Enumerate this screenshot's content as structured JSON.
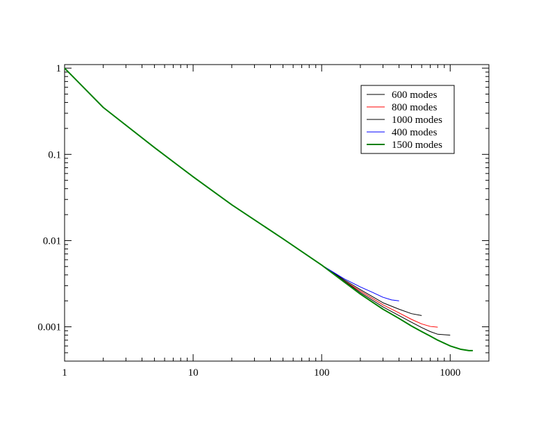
{
  "chart_data": {
    "type": "line",
    "title": "",
    "xlabel": "",
    "ylabel": "",
    "x_scale": "log",
    "y_scale": "log",
    "xlim": [
      1,
      2000
    ],
    "ylim": [
      0.0004,
      1.1
    ],
    "grid": false,
    "legend_position": "top-right",
    "x_ticks": [
      {
        "value": 1,
        "label": "1"
      },
      {
        "value": 10,
        "label": "10"
      },
      {
        "value": 100,
        "label": "100"
      },
      {
        "value": 1000,
        "label": "1000"
      }
    ],
    "y_ticks": [
      {
        "value": 1,
        "label": "1"
      },
      {
        "value": 0.1,
        "label": "0.1"
      },
      {
        "value": 0.01,
        "label": "0.01"
      },
      {
        "value": 0.001,
        "label": "0.001"
      }
    ],
    "series": [
      {
        "name": "600 modes",
        "color": "#000000",
        "line_width": 1,
        "points": [
          [
            1,
            1
          ],
          [
            2,
            0.35
          ],
          [
            5,
            0.12
          ],
          [
            10,
            0.055
          ],
          [
            20,
            0.026
          ],
          [
            50,
            0.0105
          ],
          [
            100,
            0.0052
          ],
          [
            150,
            0.0035
          ],
          [
            200,
            0.0027
          ],
          [
            300,
            0.0019
          ],
          [
            400,
            0.0016
          ],
          [
            500,
            0.00142
          ],
          [
            600,
            0.00135
          ]
        ]
      },
      {
        "name": "800 modes",
        "color": "#ff0000",
        "line_width": 1,
        "points": [
          [
            1,
            1
          ],
          [
            2,
            0.35
          ],
          [
            5,
            0.12
          ],
          [
            10,
            0.055
          ],
          [
            20,
            0.026
          ],
          [
            50,
            0.0105
          ],
          [
            100,
            0.0052
          ],
          [
            150,
            0.0034
          ],
          [
            200,
            0.0026
          ],
          [
            300,
            0.0018
          ],
          [
            400,
            0.00145
          ],
          [
            500,
            0.00122
          ],
          [
            600,
            0.00108
          ],
          [
            700,
            0.00101
          ],
          [
            800,
            0.00099
          ]
        ]
      },
      {
        "name": "1000 modes",
        "color": "#000000",
        "line_width": 1,
        "points": [
          [
            1,
            1
          ],
          [
            2,
            0.35
          ],
          [
            5,
            0.12
          ],
          [
            10,
            0.055
          ],
          [
            20,
            0.026
          ],
          [
            50,
            0.0105
          ],
          [
            100,
            0.0052
          ],
          [
            150,
            0.0034
          ],
          [
            200,
            0.0025
          ],
          [
            300,
            0.0017
          ],
          [
            400,
            0.00135
          ],
          [
            500,
            0.00113
          ],
          [
            600,
            0.00098
          ],
          [
            700,
            0.00088
          ],
          [
            800,
            0.00082
          ],
          [
            1000,
            0.0008
          ]
        ]
      },
      {
        "name": "400 modes",
        "color": "#0000ff",
        "line_width": 1,
        "points": [
          [
            1,
            1
          ],
          [
            2,
            0.35
          ],
          [
            5,
            0.12
          ],
          [
            10,
            0.055
          ],
          [
            20,
            0.026
          ],
          [
            50,
            0.0105
          ],
          [
            100,
            0.0052
          ],
          [
            150,
            0.0036
          ],
          [
            200,
            0.0029
          ],
          [
            250,
            0.0025
          ],
          [
            300,
            0.0022
          ],
          [
            350,
            0.00205
          ],
          [
            400,
            0.002
          ]
        ]
      },
      {
        "name": "1500 modes",
        "color": "#008000",
        "line_width": 2,
        "points": [
          [
            1,
            1
          ],
          [
            2,
            0.35
          ],
          [
            5,
            0.12
          ],
          [
            10,
            0.055
          ],
          [
            20,
            0.026
          ],
          [
            50,
            0.0105
          ],
          [
            100,
            0.0052
          ],
          [
            150,
            0.0033
          ],
          [
            200,
            0.0024
          ],
          [
            300,
            0.0016
          ],
          [
            400,
            0.00125
          ],
          [
            500,
            0.00102
          ],
          [
            600,
            0.00088
          ],
          [
            700,
            0.00078
          ],
          [
            800,
            0.0007
          ],
          [
            1000,
            0.0006
          ],
          [
            1200,
            0.00055
          ],
          [
            1400,
            0.00053
          ],
          [
            1500,
            0.00053
          ]
        ]
      }
    ]
  }
}
